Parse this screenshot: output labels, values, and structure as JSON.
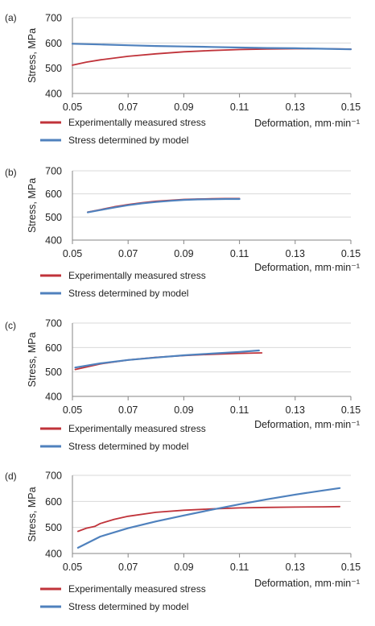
{
  "colors": {
    "experimental": "#c0333a",
    "model": "#4f81bd",
    "axis": "#868686"
  },
  "legend_labels": {
    "experimental": "Experimentally measured stress",
    "model": "Stress determined by model"
  },
  "chart_data": [
    {
      "panel_label": "(a)",
      "type": "line",
      "ylabel": "Stress, MPa",
      "xlabel": "Deformation, mm·min⁻¹",
      "xlim": [
        0.05,
        0.15
      ],
      "ylim": [
        400,
        700
      ],
      "xticks": [
        "0.05",
        "0.07",
        "0.09",
        "0.11",
        "0.13",
        "0.15"
      ],
      "yticks": [
        "400",
        "500",
        "600",
        "700"
      ],
      "grid": "horizontal",
      "legend_position": "bottom-left",
      "series": [
        {
          "name": "Experimentally measured stress",
          "color": "#c0333a",
          "x": [
            0.05,
            0.055,
            0.06,
            0.07,
            0.08,
            0.09,
            0.1,
            0.11,
            0.12,
            0.13,
            0.14,
            0.15
          ],
          "y": [
            512,
            524,
            533,
            547,
            557,
            565,
            570,
            574,
            576,
            577,
            577,
            576
          ]
        },
        {
          "name": "Stress determined by model",
          "color": "#4f81bd",
          "x": [
            0.05,
            0.06,
            0.07,
            0.08,
            0.09,
            0.1,
            0.11,
            0.12,
            0.13,
            0.14,
            0.15
          ],
          "y": [
            597,
            594,
            591,
            588,
            586,
            584,
            582,
            580,
            579,
            577,
            575
          ]
        }
      ]
    },
    {
      "panel_label": "(b)",
      "type": "line",
      "ylabel": "Stress, MPa",
      "xlabel": "Deformation,  mm·min⁻¹",
      "xlim": [
        0.05,
        0.15
      ],
      "ylim": [
        400,
        700
      ],
      "xticks": [
        "0.05",
        "0.07",
        "0.09",
        "0.11",
        "0.13",
        "0.15"
      ],
      "yticks": [
        "400",
        "500",
        "600",
        "700"
      ],
      "grid": "horizontal",
      "legend_position": "bottom-left",
      "series": [
        {
          "name": "Experimentally measured stress",
          "color": "#c0333a",
          "x": [
            0.0555,
            0.06,
            0.065,
            0.07,
            0.075,
            0.08,
            0.085,
            0.09,
            0.095,
            0.1,
            0.105,
            0.11
          ],
          "y": [
            521,
            532,
            544,
            554,
            562,
            568,
            572,
            576,
            578,
            579,
            580,
            580
          ]
        },
        {
          "name": "Stress determined by model",
          "color": "#4f81bd",
          "x": [
            0.0555,
            0.06,
            0.065,
            0.07,
            0.075,
            0.08,
            0.085,
            0.09,
            0.095,
            0.1,
            0.105,
            0.11
          ],
          "y": [
            520,
            530,
            541,
            551,
            559,
            565,
            570,
            574,
            576,
            577,
            578,
            578
          ]
        }
      ]
    },
    {
      "panel_label": "(c)",
      "type": "line",
      "ylabel": "Stress, MPa",
      "xlabel": "Deformation, mm·min⁻¹",
      "xlim": [
        0.05,
        0.15
      ],
      "ylim": [
        400,
        700
      ],
      "xticks": [
        "0.05",
        "0.07",
        "0.09",
        "0.11",
        "0.13",
        "0.15"
      ],
      "yticks": [
        "400",
        "500",
        "600",
        "700"
      ],
      "grid": "horizontal",
      "legend_position": "bottom-left",
      "series": [
        {
          "name": "Experimentally measured stress",
          "color": "#c0333a",
          "x": [
            0.051,
            0.06,
            0.07,
            0.08,
            0.09,
            0.1,
            0.11,
            0.118
          ],
          "y": [
            510,
            533,
            549,
            560,
            567,
            572,
            576,
            578
          ]
        },
        {
          "name": "Stress determined by model",
          "color": "#4f81bd",
          "x": [
            0.051,
            0.06,
            0.07,
            0.08,
            0.09,
            0.1,
            0.11,
            0.117
          ],
          "y": [
            518,
            535,
            549,
            559,
            568,
            575,
            582,
            588
          ]
        }
      ]
    },
    {
      "panel_label": "(d)",
      "type": "line",
      "ylabel": "Stress, MPa",
      "xlabel": "Deformation, mm·min⁻¹",
      "xlim": [
        0.05,
        0.15
      ],
      "ylim": [
        400,
        700
      ],
      "xticks": [
        "0.05",
        "0.07",
        "0.09",
        "0.11",
        "0.13",
        "0.15"
      ],
      "yticks": [
        "400",
        "500",
        "600",
        "700"
      ],
      "grid": "horizontal",
      "legend_position": "bottom-left",
      "series": [
        {
          "name": "Experimentally measured stress",
          "color": "#c0333a",
          "x": [
            0.052,
            0.055,
            0.058,
            0.06,
            0.065,
            0.07,
            0.08,
            0.09,
            0.1,
            0.11,
            0.12,
            0.13,
            0.14,
            0.146
          ],
          "y": [
            485,
            497,
            504,
            515,
            531,
            543,
            558,
            566,
            571,
            575,
            577,
            578,
            579,
            580
          ]
        },
        {
          "name": "Stress determined by model",
          "color": "#4f81bd",
          "x": [
            0.052,
            0.06,
            0.07,
            0.08,
            0.09,
            0.1,
            0.11,
            0.12,
            0.13,
            0.14,
            0.146
          ],
          "y": [
            422,
            465,
            497,
            523,
            546,
            568,
            589,
            608,
            626,
            642,
            651
          ]
        }
      ]
    }
  ]
}
